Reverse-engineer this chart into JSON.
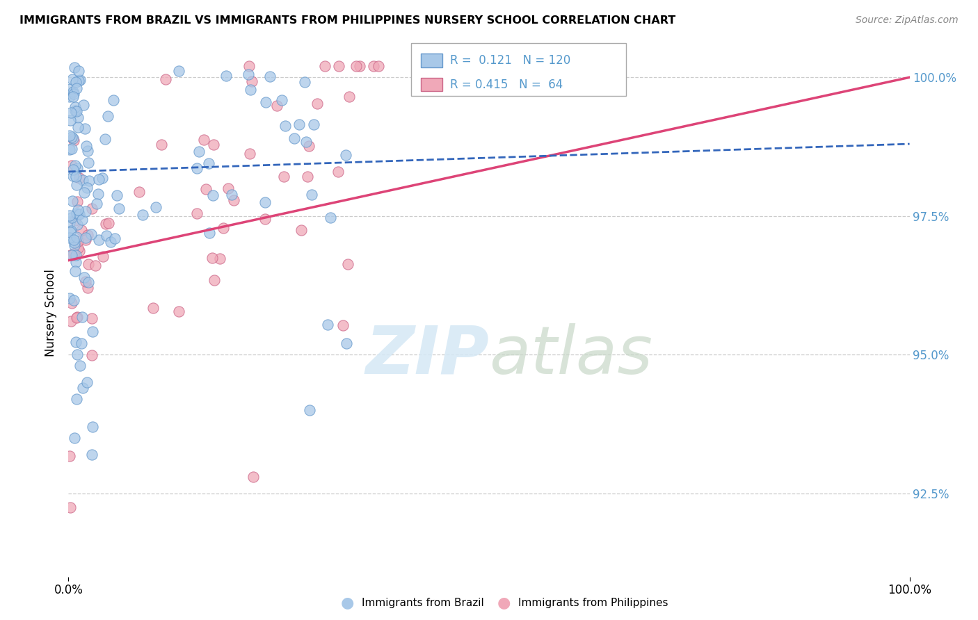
{
  "title": "IMMIGRANTS FROM BRAZIL VS IMMIGRANTS FROM PHILIPPINES NURSERY SCHOOL CORRELATION CHART",
  "source": "Source: ZipAtlas.com",
  "ylabel": "Nursery School",
  "brazil_color": "#A8C8E8",
  "brazil_edge": "#6699CC",
  "philippines_color": "#F0A8B8",
  "philippines_edge": "#CC6688",
  "brazil_line_color": "#3366BB",
  "philippines_line_color": "#DD4477",
  "watermark_color": "#D5E8F5",
  "background_color": "#FFFFFF",
  "grid_color": "#CCCCCC",
  "right_tick_color": "#5599CC",
  "y_min": 0.91,
  "y_max": 1.005,
  "x_min": 0.0,
  "x_max": 1.0,
  "y_tick_positions": [
    0.925,
    0.95,
    0.975,
    1.0
  ],
  "y_tick_labels": [
    "92.5%",
    "95.0%",
    "97.5%",
    "100.0%"
  ],
  "legend_r1": "R =  0.121",
  "legend_n1": "N = 120",
  "legend_r2": "R = 0.415",
  "legend_n2": "N =  64"
}
